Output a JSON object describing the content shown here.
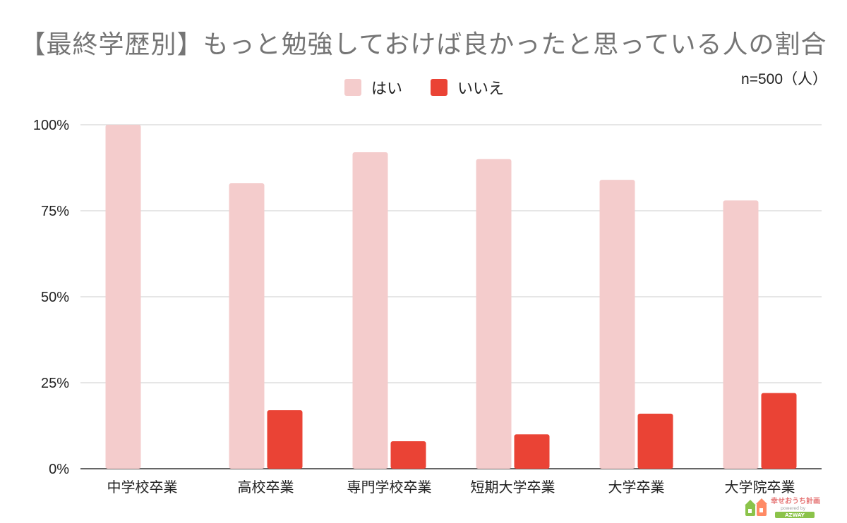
{
  "chart_data": {
    "type": "bar",
    "title": "【最終学歴別】もっと勉強しておけば良かったと思っている人の割合",
    "note": "n=500（人）",
    "categories": [
      "中学校卒業",
      "高校卒業",
      "専門学校卒業",
      "短期大学卒業",
      "大学卒業",
      "大学院卒業"
    ],
    "series": [
      {
        "name": "はい",
        "values": [
          100,
          83,
          92,
          90,
          84,
          78
        ],
        "color": "#f4cccc"
      },
      {
        "name": "いいえ",
        "values": [
          0,
          17,
          8,
          10,
          16,
          22
        ],
        "color": "#ea4335"
      }
    ],
    "yticks": [
      "0%",
      "25%",
      "50%",
      "75%",
      "100%"
    ],
    "ylim": [
      0,
      100
    ],
    "unit": "%",
    "grid": true,
    "legend": "top-center"
  },
  "branding": {
    "logo_text": "幸せおうち計画",
    "logo_sub": "powered by",
    "logo_brand": "AZWAY"
  }
}
